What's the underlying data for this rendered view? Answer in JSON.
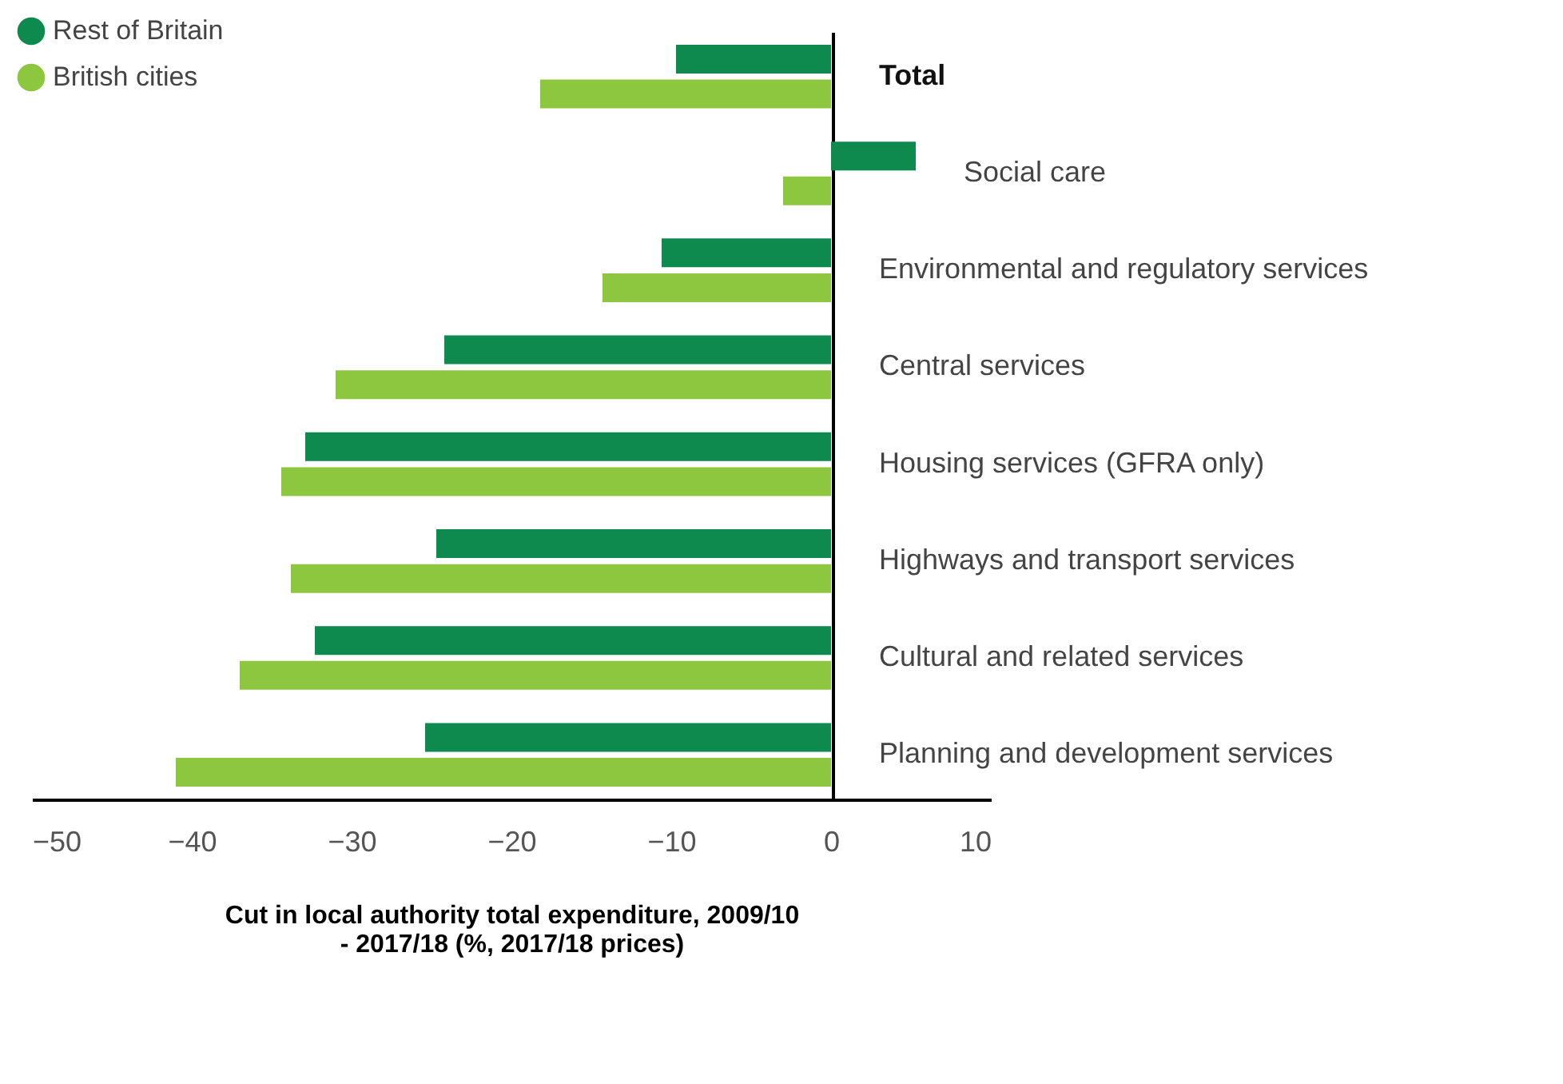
{
  "chart_data": {
    "type": "bar",
    "orientation": "horizontal",
    "categories": [
      "Total",
      "Social care",
      "Environmental and regulatory services",
      "Central services",
      "Housing services (GFRA only)",
      "Highways and transport services",
      "Cultural and related services",
      "Planning and development services"
    ],
    "series": [
      {
        "name": "Rest of Britain",
        "color": "#0e8a4e",
        "values": [
          -9.7,
          5.3,
          -10.6,
          -24.2,
          -32.9,
          -24.7,
          -32.3,
          -25.4
        ]
      },
      {
        "name": "British cities",
        "color": "#8dc63f",
        "values": [
          -18.2,
          -3.0,
          -14.3,
          -31.0,
          -34.4,
          -33.8,
          -37.0,
          -41.0
        ]
      }
    ],
    "xlim": [
      -50,
      10
    ],
    "xticks": [
      -50,
      -40,
      -30,
      -20,
      -10,
      0,
      10
    ],
    "xlabel": "Cut in local authority total expenditure, 2009/10 - 2017/18 (%, 2017/18 prices)",
    "legend": "top left",
    "grid": false,
    "tick_labels": "x"
  }
}
